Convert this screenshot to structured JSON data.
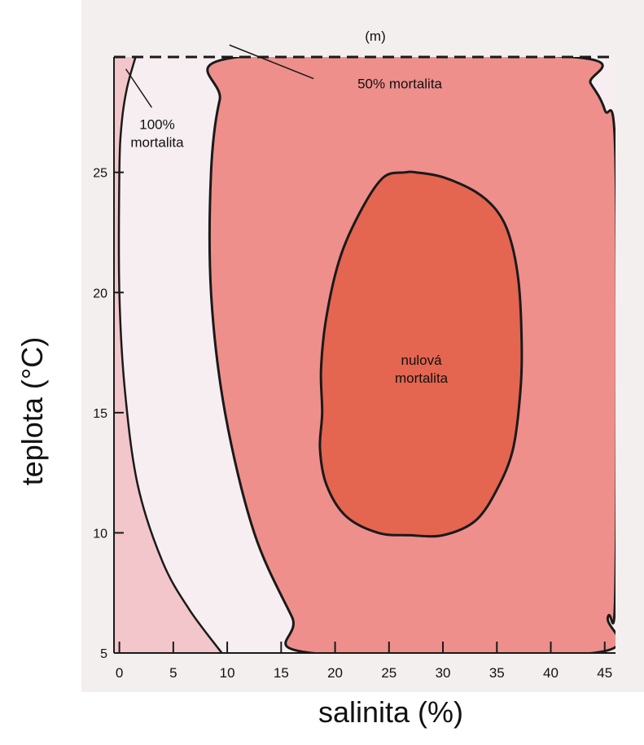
{
  "chart_data": {
    "type": "contour",
    "title": "(m)",
    "xlabel": "salinita (%)",
    "ylabel": "teplota (°C)",
    "xlim": [
      -0.5,
      46
    ],
    "ylim": [
      5,
      29.8
    ],
    "x_ticks": [
      0,
      5,
      10,
      15,
      20,
      25,
      30,
      35,
      40,
      45
    ],
    "y_ticks": [
      5,
      10,
      15,
      20,
      25
    ],
    "colors": {
      "background": "#f6eef0",
      "zone_100": "#f2c6cb",
      "zone_50": "#ee8f8c",
      "zone_0": "#e46550",
      "outline": "#1a1a1a"
    },
    "regions": [
      {
        "label": "100% mortalita",
        "boundary": [
          [
            1.5,
            29.8
          ],
          [
            0.7,
            28.5
          ],
          [
            0.2,
            27.0
          ],
          [
            0,
            25.0
          ],
          [
            0,
            20.0
          ],
          [
            0.5,
            16.0
          ],
          [
            1.7,
            12.0
          ],
          [
            4.0,
            8.8
          ],
          [
            6.5,
            6.8
          ],
          [
            9.5,
            5.0
          ]
        ]
      },
      {
        "label": "50% mortalita",
        "boundary": [
          [
            11.0,
            29.8
          ],
          [
            9.3,
            28.0
          ],
          [
            8.5,
            25.0
          ],
          [
            8.5,
            20.0
          ],
          [
            9.8,
            15.0
          ],
          [
            12.5,
            10.0
          ],
          [
            16.0,
            6.5
          ],
          [
            17.8,
            5.0
          ],
          [
            44.0,
            5.0
          ],
          [
            45.3,
            6.5
          ],
          [
            46.0,
            8.0
          ],
          [
            46.0,
            25.5
          ],
          [
            45.0,
            27.6
          ],
          [
            43.7,
            28.7
          ],
          [
            42.0,
            29.8
          ]
        ]
      },
      {
        "label": "nulová mortalita",
        "boundary": [
          [
            26.5,
            25.0
          ],
          [
            24.5,
            24.8
          ],
          [
            22.5,
            23.5
          ],
          [
            20.5,
            21.5
          ],
          [
            19.2,
            19.0
          ],
          [
            18.7,
            16.8
          ],
          [
            18.8,
            15.0
          ],
          [
            18.6,
            13.5
          ],
          [
            19.2,
            12.0
          ],
          [
            21.0,
            10.7
          ],
          [
            24.0,
            10.0
          ],
          [
            27.0,
            9.9
          ],
          [
            30.0,
            9.9
          ],
          [
            33.0,
            10.5
          ],
          [
            35.0,
            11.8
          ],
          [
            36.5,
            13.5
          ],
          [
            37.2,
            16.0
          ],
          [
            37.3,
            18.0
          ],
          [
            37.0,
            20.5
          ],
          [
            36.2,
            22.3
          ],
          [
            35.0,
            23.4
          ],
          [
            33.0,
            24.2
          ],
          [
            30.0,
            24.8
          ],
          [
            27.5,
            25.0
          ]
        ]
      }
    ],
    "annotations": [
      {
        "lines": [
          "100%",
          "mortalita"
        ],
        "at": [
          3.5,
          26.8
        ],
        "leader": [
          [
            3.0,
            27.7
          ],
          [
            0.6,
            29.3
          ]
        ]
      },
      {
        "lines": [
          "50% mortalita"
        ],
        "at": [
          26.0,
          28.5
        ],
        "leader": [
          [
            18.0,
            28.9
          ],
          [
            10.2,
            30.3
          ]
        ]
      },
      {
        "lines": [
          "nulová",
          "mortalita"
        ],
        "at": [
          28.0,
          17.0
        ],
        "leader": null
      }
    ]
  }
}
